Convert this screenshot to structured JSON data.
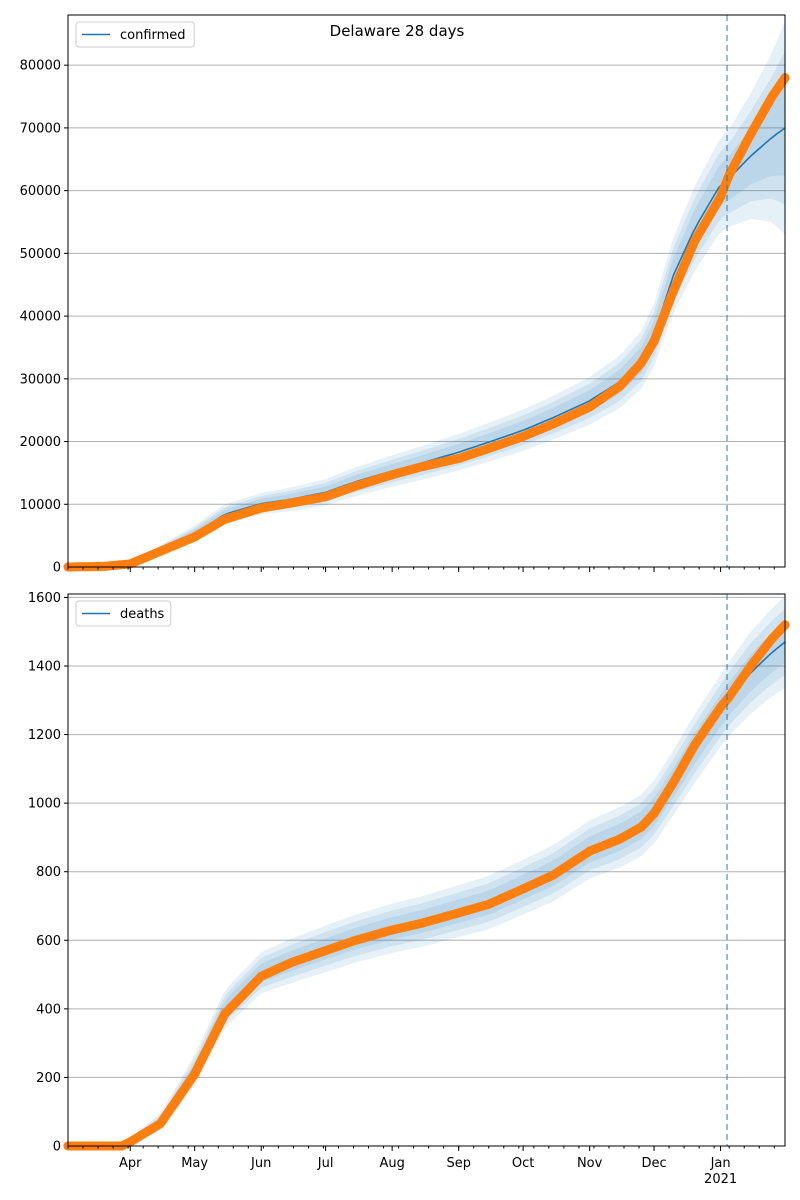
{
  "title": "Delaware 28 days",
  "colors": {
    "model": "#1f77b4",
    "observed": "#ff7f0e",
    "band": "#1f77b4",
    "grid": "#b0b0b0",
    "divider": "#1f77b4"
  },
  "x_axis": {
    "month_labels": [
      "Apr",
      "May",
      "Jun",
      "Jul",
      "Aug",
      "Sep",
      "Oct",
      "Nov",
      "Dec",
      "Jan"
    ],
    "year_label": "2021"
  },
  "chart_data": [
    {
      "type": "line",
      "legend": "confirmed",
      "legend_position": "top-left",
      "grid": true,
      "xlim": [
        "2020-03-03",
        "2021-01-31"
      ],
      "ylim": [
        0,
        88000
      ],
      "yticks": [
        0,
        10000,
        20000,
        30000,
        40000,
        50000,
        60000,
        70000,
        80000
      ],
      "forecast_start": "2021-01-04",
      "model": {
        "x": [
          "2020-03-03",
          "2020-03-20",
          "2020-04-01",
          "2020-04-15",
          "2020-05-01",
          "2020-05-15",
          "2020-06-01",
          "2020-06-15",
          "2020-07-01",
          "2020-07-15",
          "2020-08-01",
          "2020-08-15",
          "2020-09-01",
          "2020-09-15",
          "2020-10-01",
          "2020-10-15",
          "2020-11-01",
          "2020-11-15",
          "2020-11-25",
          "2020-12-01",
          "2020-12-10",
          "2020-12-20",
          "2021-01-01",
          "2021-01-05",
          "2021-01-15",
          "2021-01-25",
          "2021-01-31"
        ],
        "y": [
          0,
          100,
          400,
          2800,
          5300,
          8400,
          10100,
          10800,
          11900,
          13600,
          15300,
          16600,
          18300,
          19900,
          21800,
          23800,
          26500,
          29500,
          33000,
          37000,
          46500,
          54000,
          61000,
          62000,
          65500,
          68500,
          70000
        ],
        "band_half_width": [
          0,
          50,
          150,
          700,
          1300,
          1600,
          1700,
          1900,
          2100,
          2300,
          2500,
          2700,
          2900,
          3100,
          3300,
          3500,
          3800,
          4200,
          4600,
          5000,
          6000,
          6800,
          7500,
          7800,
          10000,
          13500,
          17000
        ]
      },
      "observed": {
        "x": [
          "2020-03-03",
          "2020-03-20",
          "2020-04-01",
          "2020-04-15",
          "2020-05-01",
          "2020-05-15",
          "2020-06-01",
          "2020-06-15",
          "2020-07-01",
          "2020-07-15",
          "2020-08-01",
          "2020-08-15",
          "2020-09-01",
          "2020-09-15",
          "2020-10-01",
          "2020-10-15",
          "2020-11-01",
          "2020-11-15",
          "2020-11-25",
          "2020-12-01",
          "2020-12-10",
          "2020-12-20",
          "2021-01-01",
          "2021-01-05",
          "2021-01-15",
          "2021-01-25",
          "2021-01-31"
        ],
        "y": [
          0,
          100,
          500,
          2500,
          4800,
          7600,
          9400,
          10200,
          11200,
          12900,
          14700,
          16000,
          17300,
          18900,
          20800,
          22800,
          25500,
          28800,
          32500,
          36000,
          44000,
          52000,
          59000,
          62500,
          69000,
          75000,
          78000
        ]
      }
    },
    {
      "type": "line",
      "legend": "deaths",
      "legend_position": "top-left",
      "grid": true,
      "xlim": [
        "2020-03-03",
        "2021-01-31"
      ],
      "ylim": [
        0,
        1610
      ],
      "yticks": [
        0,
        200,
        400,
        600,
        800,
        1000,
        1200,
        1400,
        1600
      ],
      "forecast_start": "2021-01-04",
      "model": {
        "x": [
          "2020-03-03",
          "2020-03-28",
          "2020-04-01",
          "2020-04-15",
          "2020-05-01",
          "2020-05-15",
          "2020-06-01",
          "2020-06-15",
          "2020-07-01",
          "2020-07-15",
          "2020-08-01",
          "2020-08-15",
          "2020-09-01",
          "2020-09-15",
          "2020-10-01",
          "2020-10-15",
          "2020-11-01",
          "2020-11-15",
          "2020-11-25",
          "2020-12-01",
          "2020-12-10",
          "2020-12-20",
          "2021-01-01",
          "2021-01-05",
          "2021-01-15",
          "2021-01-25",
          "2021-01-31"
        ],
        "y": [
          0,
          0,
          15,
          70,
          220,
          400,
          505,
          540,
          575,
          605,
          635,
          655,
          685,
          710,
          755,
          795,
          865,
          900,
          935,
          975,
          1060,
          1160,
          1270,
          1305,
          1380,
          1440,
          1470
        ],
        "band_half_width": [
          0,
          0,
          10,
          25,
          45,
          55,
          60,
          65,
          68,
          70,
          72,
          74,
          76,
          78,
          80,
          82,
          85,
          88,
          90,
          92,
          95,
          100,
          105,
          108,
          120,
          128,
          135
        ]
      },
      "observed": {
        "x": [
          "2020-03-03",
          "2020-03-28",
          "2020-04-01",
          "2020-04-15",
          "2020-05-01",
          "2020-05-15",
          "2020-06-01",
          "2020-06-15",
          "2020-07-01",
          "2020-07-15",
          "2020-08-01",
          "2020-08-15",
          "2020-09-01",
          "2020-09-15",
          "2020-10-01",
          "2020-10-15",
          "2020-11-01",
          "2020-11-15",
          "2020-11-25",
          "2020-12-01",
          "2020-12-10",
          "2020-12-20",
          "2021-01-01",
          "2021-01-05",
          "2021-01-15",
          "2021-01-25",
          "2021-01-31"
        ],
        "y": [
          0,
          0,
          12,
          65,
          210,
          385,
          495,
          535,
          570,
          600,
          630,
          650,
          680,
          705,
          750,
          790,
          860,
          895,
          930,
          970,
          1060,
          1170,
          1280,
          1310,
          1400,
          1480,
          1520
        ]
      }
    }
  ]
}
